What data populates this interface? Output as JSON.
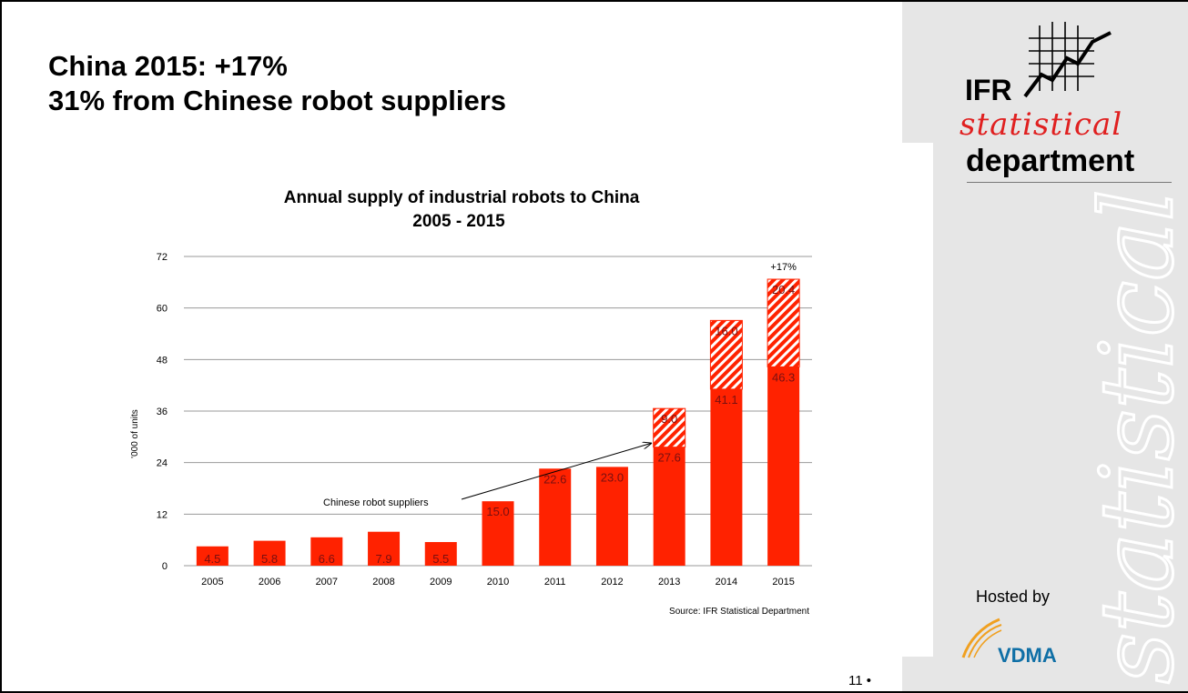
{
  "slide": {
    "headline_line1": "China 2015: +17%",
    "headline_line2": "31% from Chinese robot suppliers",
    "page_number": "11 •"
  },
  "logo": {
    "ifr": "IFR",
    "statistical": "statistical",
    "department": "department",
    "watermark": "statistical"
  },
  "footer": {
    "hosted_by": "Hosted by",
    "vdma": "VDMA"
  },
  "colors": {
    "bar_red": "#ff2200",
    "side_panel_gray": "#e6e6e6",
    "logo_red": "#e02020",
    "vdma_blue": "#0f6fa6",
    "vdma_orange": "#f0a020"
  },
  "chart_data": {
    "type": "bar",
    "stacked": true,
    "title": "Annual supply of industrial robots to China",
    "subtitle": "2005 - 2015",
    "ylabel": "'000 of units",
    "ylim": [
      0,
      72
    ],
    "yticks": [
      0,
      12,
      24,
      36,
      48,
      60,
      72
    ],
    "grid": true,
    "categories": [
      "2005",
      "2006",
      "2007",
      "2008",
      "2009",
      "2010",
      "2011",
      "2012",
      "2013",
      "2014",
      "2015"
    ],
    "series": [
      {
        "pattern": "solid",
        "values": [
          4.5,
          5.8,
          6.6,
          7.9,
          5.5,
          15.0,
          22.6,
          23.0,
          27.6,
          41.1,
          46.3
        ],
        "labels": [
          "4.5",
          "5.8",
          "6.6",
          "7.9",
          "5.5",
          "15.0",
          "22.6",
          "23.0",
          "27.6",
          "41.1",
          "46.3"
        ]
      },
      {
        "name": "Chinese robot suppliers",
        "pattern": "hatched",
        "values": [
          0,
          0,
          0,
          0,
          0,
          0,
          0,
          0,
          9.0,
          16.0,
          20.4
        ],
        "labels": [
          "",
          "",
          "",
          "",
          "",
          "",
          "",
          "",
          "9.0",
          "16.0",
          "20.4"
        ]
      }
    ],
    "annotations": [
      {
        "text": "+17%",
        "category": "2015"
      },
      {
        "text": "Chinese robot suppliers",
        "arrow_to_category": "2013"
      }
    ],
    "source": "Source: IFR Statistical Department"
  }
}
